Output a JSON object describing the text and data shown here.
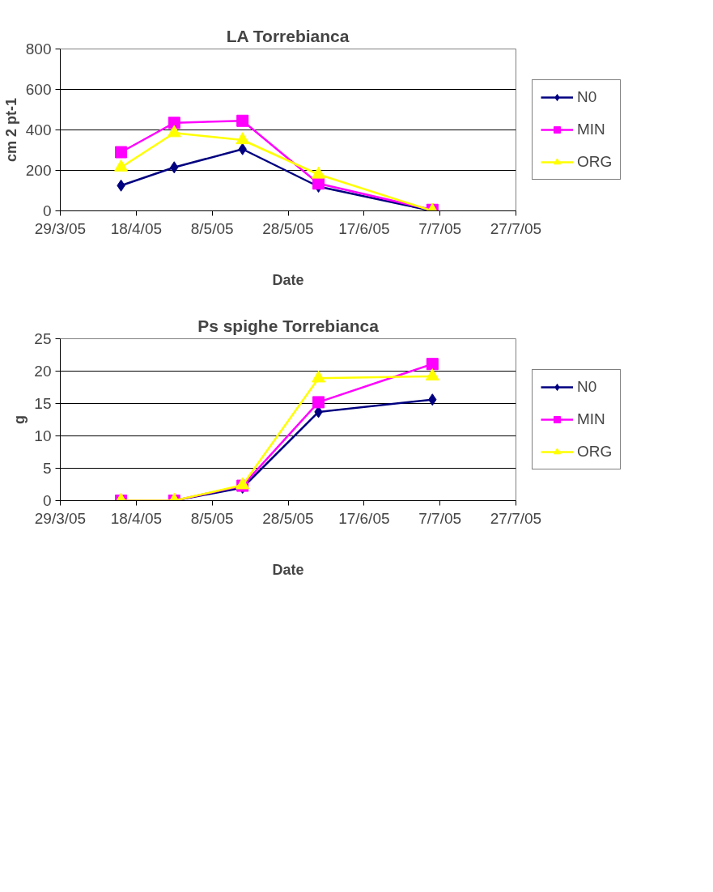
{
  "chart_data": [
    {
      "type": "line",
      "title": "LA Torrebianca",
      "xlabel": "Date",
      "ylabel": "cm 2 pt-1",
      "x": [
        "2005-04-14",
        "2005-04-28",
        "2005-05-16",
        "2005-06-05",
        "2005-07-05"
      ],
      "series": [
        {
          "name": "N0",
          "color": "#000080",
          "marker": "diamond",
          "values": [
            125,
            215,
            305,
            120,
            0
          ]
        },
        {
          "name": "MIN",
          "color": "#ff00ff",
          "marker": "square",
          "values": [
            290,
            435,
            445,
            135,
            5
          ]
        },
        {
          "name": "ORG",
          "color": "#ffff00",
          "marker": "triangle",
          "values": [
            215,
            385,
            350,
            180,
            0
          ]
        }
      ],
      "xlim": [
        "2005-03-29",
        "2005-07-27"
      ],
      "xticks": [
        {
          "value": "2005-03-29",
          "label": "29/3/05"
        },
        {
          "value": "2005-04-18",
          "label": "18/4/05"
        },
        {
          "value": "2005-05-08",
          "label": "8/5/05"
        },
        {
          "value": "2005-05-28",
          "label": "28/5/05"
        },
        {
          "value": "2005-06-17",
          "label": "17/6/05"
        },
        {
          "value": "2005-07-07",
          "label": "7/7/05"
        },
        {
          "value": "2005-07-27",
          "label": "27/7/05"
        }
      ],
      "ylim": [
        0,
        800
      ],
      "yticks": [
        0,
        200,
        400,
        600,
        800
      ],
      "grid": "y",
      "legend": "right",
      "line_style": "solid"
    },
    {
      "type": "line",
      "title": "Ps spighe Torrebianca",
      "xlabel": "Date",
      "ylabel": "g",
      "x": [
        "2005-04-14",
        "2005-04-28",
        "2005-05-16",
        "2005-06-05",
        "2005-07-05"
      ],
      "series": [
        {
          "name": "N0",
          "color": "#000080",
          "marker": "diamond",
          "values": [
            0,
            0,
            2,
            13.7,
            15.6
          ]
        },
        {
          "name": "MIN",
          "color": "#ff00ff",
          "marker": "square",
          "values": [
            0,
            0,
            2.3,
            15.2,
            21.1
          ]
        },
        {
          "name": "ORG",
          "color": "#ffff00",
          "marker": "triangle",
          "values": [
            0,
            0,
            2.4,
            18.9,
            19.2
          ]
        }
      ],
      "xlim": [
        "2005-03-29",
        "2005-07-27"
      ],
      "xticks": [
        {
          "value": "2005-03-29",
          "label": "29/3/05"
        },
        {
          "value": "2005-04-18",
          "label": "18/4/05"
        },
        {
          "value": "2005-05-08",
          "label": "8/5/05"
        },
        {
          "value": "2005-05-28",
          "label": "28/5/05"
        },
        {
          "value": "2005-06-17",
          "label": "17/6/05"
        },
        {
          "value": "2005-07-07",
          "label": "7/7/05"
        },
        {
          "value": "2005-07-27",
          "label": "27/7/05"
        }
      ],
      "ylim": [
        0,
        25
      ],
      "yticks": [
        0,
        5,
        10,
        15,
        20,
        25
      ],
      "grid": "y",
      "legend": "right",
      "line_style": "solid"
    }
  ]
}
